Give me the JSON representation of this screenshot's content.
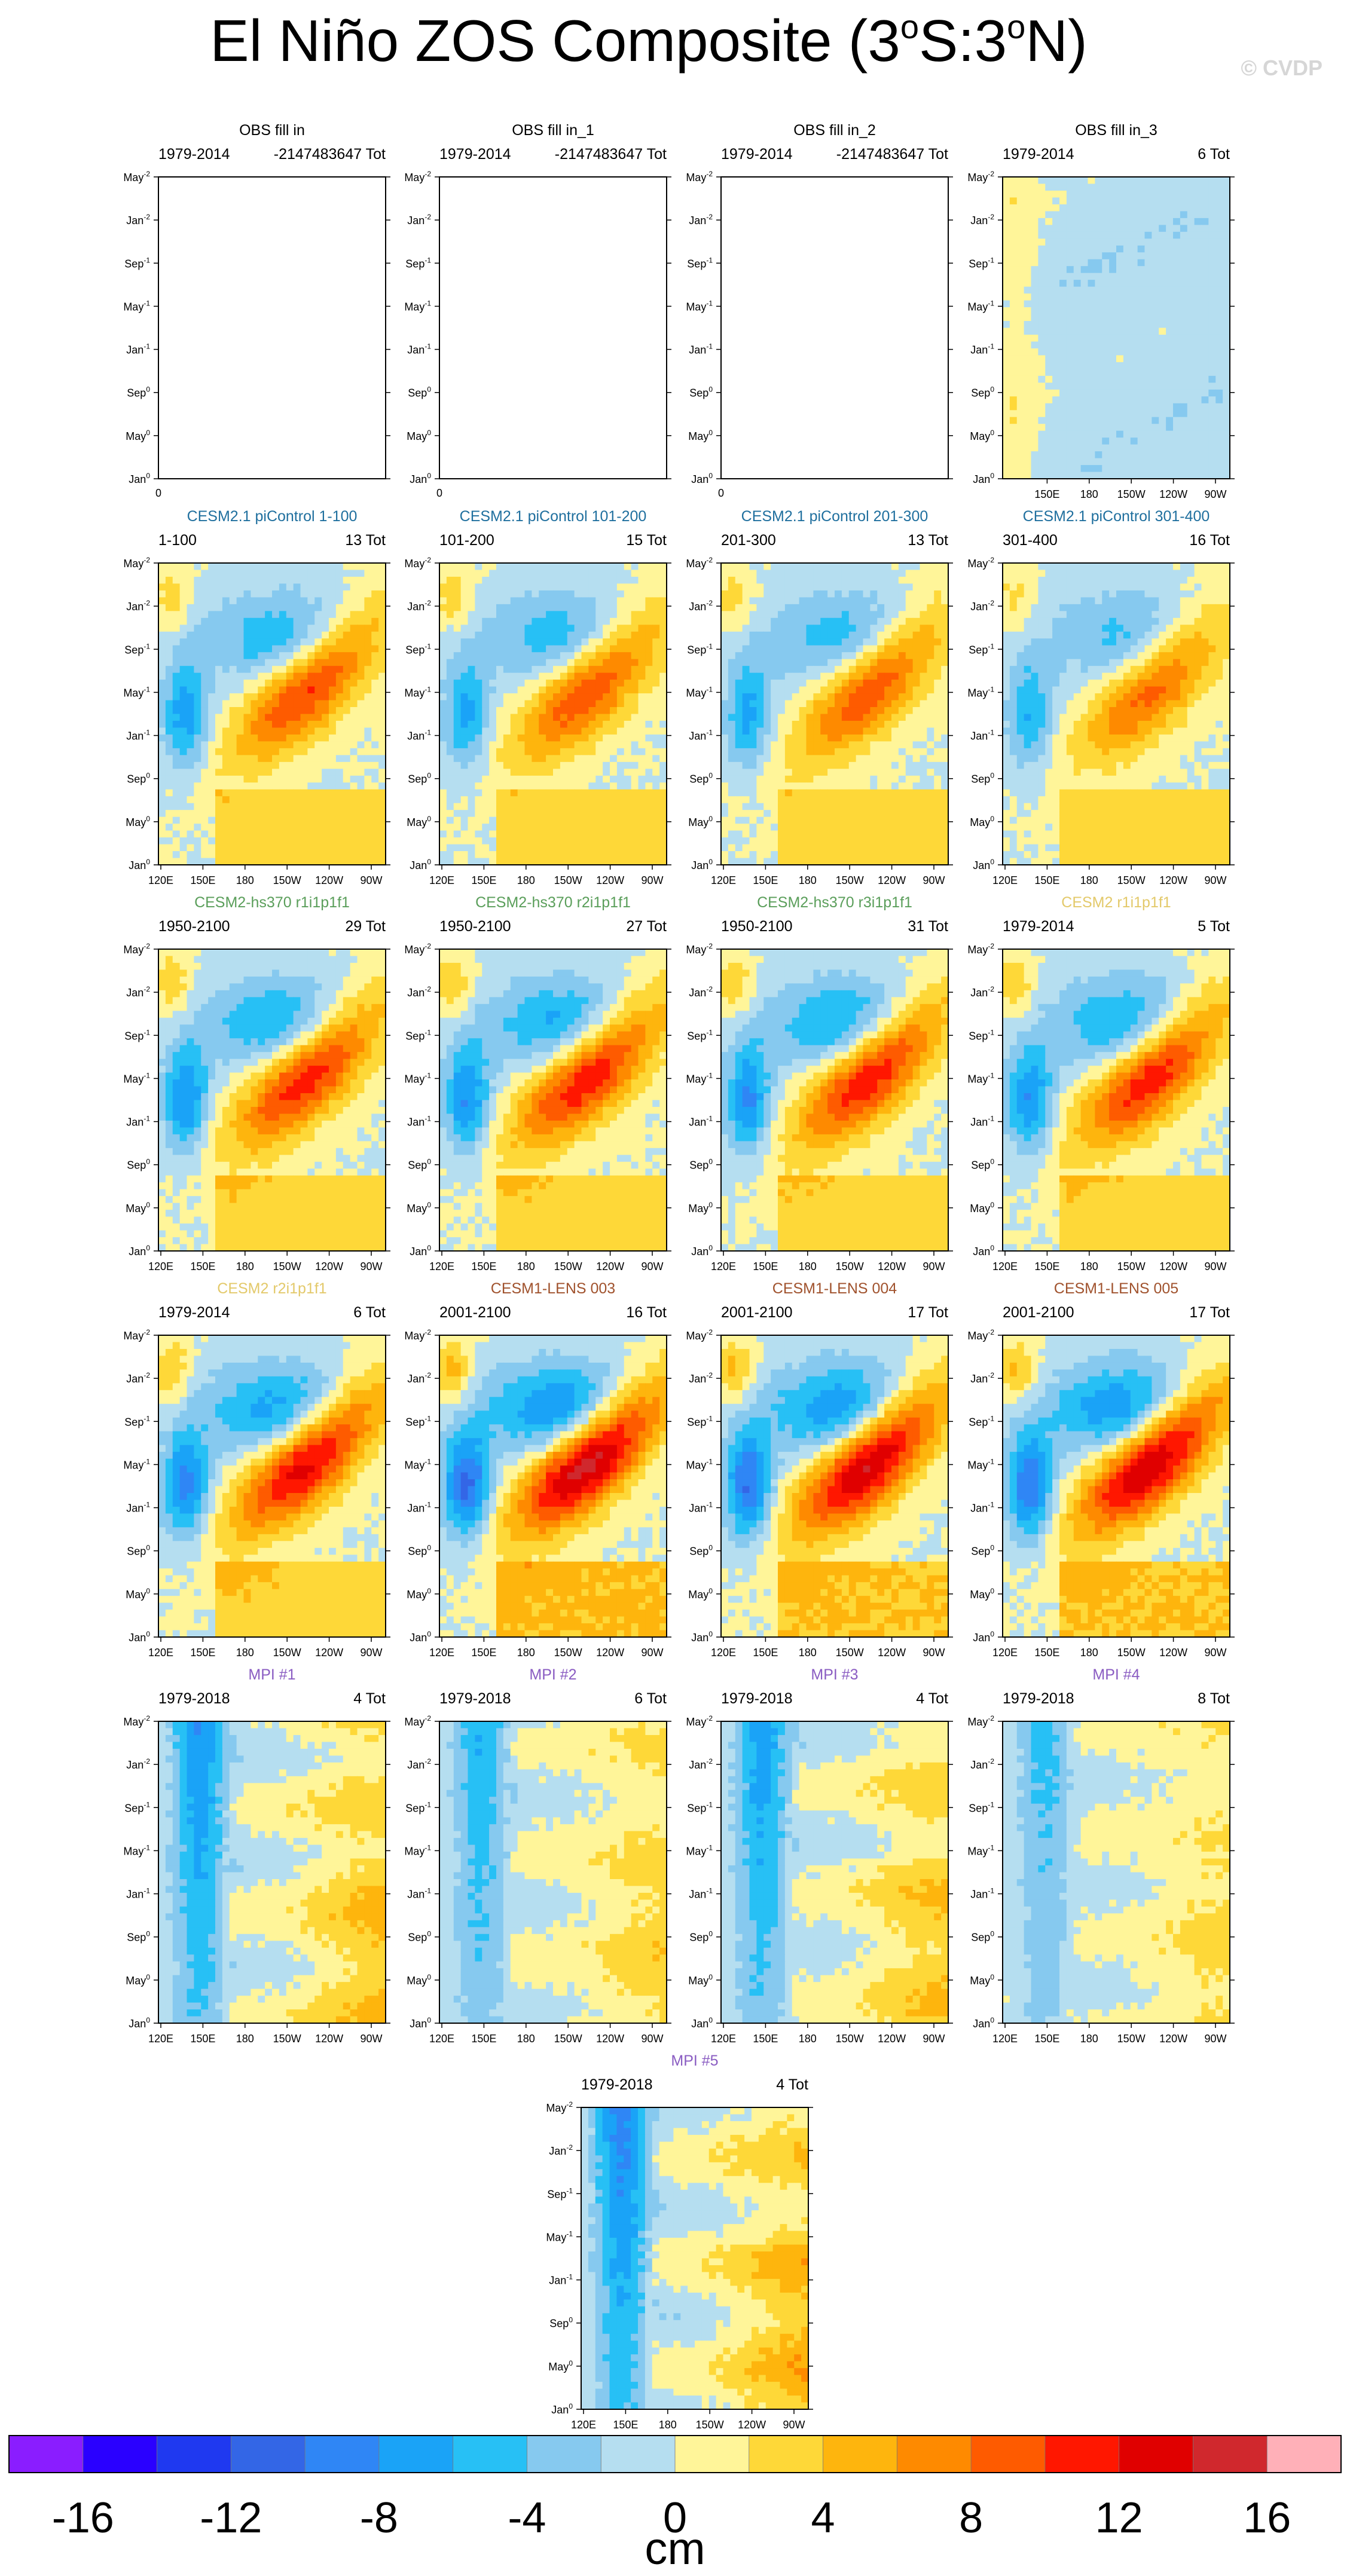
{
  "title": {
    "main": "El Niño ZOS Composite (3",
    "deg1": "o",
    "mid": "S:3",
    "deg2": "o",
    "end": "N)"
  },
  "watermark": "© CVDP",
  "y_ticks": [
    {
      "m": "May",
      "s": "-2"
    },
    {
      "m": "Jan",
      "s": "-2"
    },
    {
      "m": "Sep",
      "s": "-1"
    },
    {
      "m": "May",
      "s": "-1"
    },
    {
      "m": "Jan",
      "s": "-1"
    },
    {
      "m": "Sep",
      "s": "0"
    },
    {
      "m": "May",
      "s": "0"
    },
    {
      "m": "Jan",
      "s": "0"
    }
  ],
  "x_ticks": [
    "120E",
    "150E",
    "180",
    "150W",
    "120W",
    "90W"
  ],
  "x_ticks_obs": [
    "150E",
    "180",
    "150W",
    "120W",
    "90W"
  ],
  "chart_data": {
    "type": "heatmap",
    "panels": [
      {
        "title": "OBS fill in",
        "period": "1979-2014",
        "count": "-2147483647 Tot",
        "title_color": "#000000",
        "state": "empty",
        "empty_label": "0"
      },
      {
        "title": "OBS fill in_1",
        "period": "1979-2014",
        "count": "-2147483647 Tot",
        "title_color": "#000000",
        "state": "empty",
        "empty_label": "0"
      },
      {
        "title": "OBS fill in_2",
        "period": "1979-2014",
        "count": "-2147483647 Tot",
        "title_color": "#000000",
        "state": "empty",
        "empty_label": "0"
      },
      {
        "title": "OBS fill in_3",
        "period": "1979-2014",
        "count": "6 Tot",
        "title_color": "#000000",
        "state": "obs",
        "amp": 0.35
      },
      {
        "title": "CESM2.1 piControl 1-100",
        "period": "1-100",
        "count": "13 Tot",
        "title_color": "#1f6f9e",
        "state": "data",
        "amp": 0.72
      },
      {
        "title": "CESM2.1 piControl 101-200",
        "period": "101-200",
        "count": "15 Tot",
        "title_color": "#1f6f9e",
        "state": "data",
        "amp": 0.68
      },
      {
        "title": "CESM2.1 piControl 201-300",
        "period": "201-300",
        "count": "13 Tot",
        "title_color": "#1f6f9e",
        "state": "data",
        "amp": 0.66
      },
      {
        "title": "CESM2.1 piControl 301-400",
        "period": "301-400",
        "count": "16 Tot",
        "title_color": "#1f6f9e",
        "state": "data",
        "amp": 0.6
      },
      {
        "title": "CESM2-hs370 r1i1p1f1",
        "period": "1950-2100",
        "count": "29 Tot",
        "title_color": "#5a9e5a",
        "state": "data",
        "amp": 0.8
      },
      {
        "title": "CESM2-hs370 r2i1p1f1",
        "period": "1950-2100",
        "count": "27 Tot",
        "title_color": "#5a9e5a",
        "state": "data",
        "amp": 0.82
      },
      {
        "title": "CESM2-hs370 r3i1p1f1",
        "period": "1950-2100",
        "count": "31 Tot",
        "title_color": "#5a9e5a",
        "state": "data",
        "amp": 0.82
      },
      {
        "title": "CESM2 r1i1p1f1",
        "period": "1979-2014",
        "count": "5 Tot",
        "title_color": "#e3c96a",
        "state": "data",
        "amp": 0.8
      },
      {
        "title": "CESM2 r2i1p1f1",
        "period": "1979-2014",
        "count": "6 Tot",
        "title_color": "#e3c96a",
        "state": "data",
        "amp": 0.9
      },
      {
        "title": "CESM1-LENS 003",
        "period": "2001-2100",
        "count": "16 Tot",
        "title_color": "#a0522d",
        "state": "data",
        "amp": 1.05
      },
      {
        "title": "CESM1-LENS 004",
        "period": "2001-2100",
        "count": "17 Tot",
        "title_color": "#a0522d",
        "state": "data",
        "amp": 1.0
      },
      {
        "title": "CESM1-LENS 005",
        "period": "2001-2100",
        "count": "17 Tot",
        "title_color": "#a0522d",
        "state": "data",
        "amp": 1.0
      },
      {
        "title": "MPI #1",
        "period": "1979-2018",
        "count": "4 Tot",
        "title_color": "#8a5cc2",
        "state": "mpi",
        "amp": 0.55
      },
      {
        "title": "MPI #2",
        "period": "1979-2018",
        "count": "6 Tot",
        "title_color": "#8a5cc2",
        "state": "mpi",
        "amp": 0.42
      },
      {
        "title": "MPI #3",
        "period": "1979-2018",
        "count": "4 Tot",
        "title_color": "#8a5cc2",
        "state": "mpi",
        "amp": 0.5
      },
      {
        "title": "MPI #4",
        "period": "1979-2018",
        "count": "8 Tot",
        "title_color": "#8a5cc2",
        "state": "mpi",
        "amp": 0.35
      },
      {
        "title": "MPI #5",
        "period": "1979-2018",
        "count": "4 Tot",
        "title_color": "#8a5cc2",
        "state": "mpi",
        "amp": 0.62
      }
    ]
  },
  "colorbar": {
    "colors": [
      "#8a1dff",
      "#2a00ff",
      "#1f39f0",
      "#3366e6",
      "#2f86f5",
      "#1aa3f7",
      "#27c0f5",
      "#86c9ef",
      "#b5def0",
      "#fff599",
      "#fed838",
      "#feb50d",
      "#fe8a00",
      "#fe5b00",
      "#ff1700",
      "#e00000",
      "#d0282d",
      "#ffb0b8"
    ],
    "labels": [
      "-16",
      "-12",
      "-8",
      "-4",
      "0",
      "4",
      "8",
      "12",
      "16"
    ],
    "unit": "cm"
  }
}
